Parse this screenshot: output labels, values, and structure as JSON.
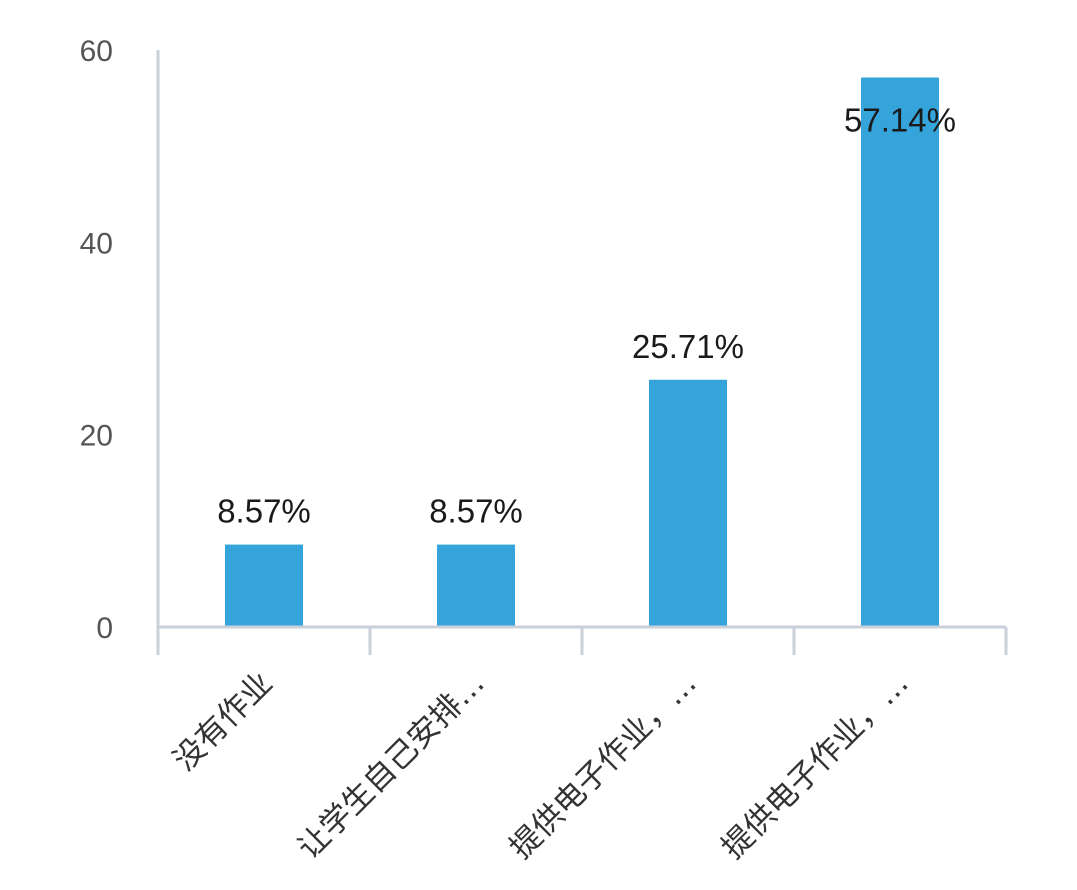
{
  "chart_data": {
    "type": "bar",
    "categories": [
      "没有作业",
      "让学生自己安排…",
      "提供电子作业，…",
      "提供电子作业，…"
    ],
    "values": [
      8.57,
      8.57,
      25.71,
      57.14
    ],
    "data_labels": [
      "8.57%",
      "8.57%",
      "25.71%",
      "57.14%"
    ],
    "y_ticks": [
      0,
      20,
      40,
      60
    ],
    "ylim": [
      0,
      60
    ],
    "grid": false,
    "legend": "none",
    "colors": {
      "bar": "#35a4db",
      "axis": "#c9d1da",
      "tick_text": "#555555",
      "label_text": "#1a1a1a"
    }
  }
}
